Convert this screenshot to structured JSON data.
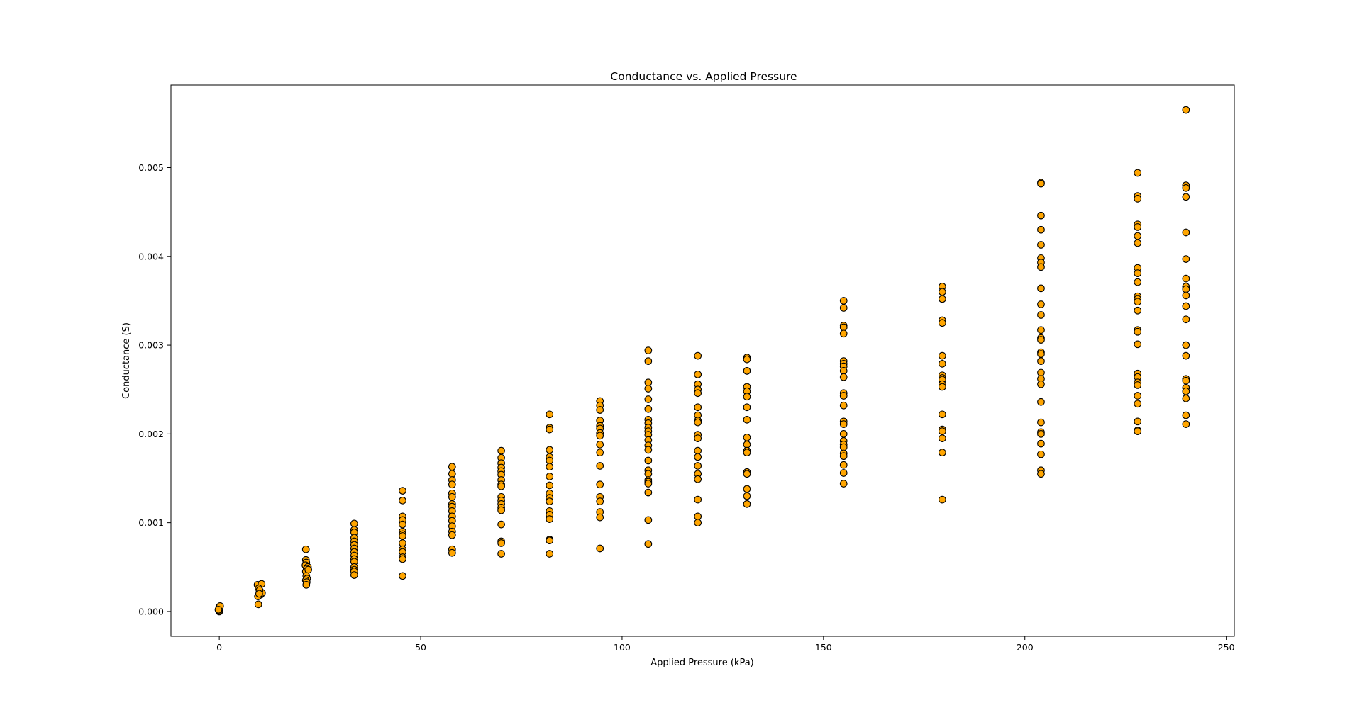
{
  "chart_data": {
    "type": "scatter",
    "title": "Conductance vs. Applied Pressure",
    "xlabel": "Applied Pressure (kPa)",
    "ylabel": "Conductance (S)",
    "xlim": [
      -12,
      252
    ],
    "ylim": [
      -0.00028,
      0.00593
    ],
    "xticks": [
      0,
      50,
      100,
      150,
      200,
      250
    ],
    "xtick_labels": [
      "0",
      "50",
      "100",
      "150",
      "200",
      "250"
    ],
    "yticks": [
      0.0,
      0.001,
      0.002,
      0.003,
      0.004,
      0.005
    ],
    "ytick_labels": [
      "0.000",
      "0.001",
      "0.002",
      "0.003",
      "0.004",
      "0.005"
    ],
    "grid": false,
    "marker_color": "#FFA500",
    "marker_edge_color": "#000000",
    "points": [
      [
        0,
        5e-05
      ],
      [
        0,
        0.0
      ],
      [
        0,
        2e-05
      ],
      [
        0,
        4e-05
      ],
      [
        0,
        1e-05
      ],
      [
        0,
        3e-05
      ],
      [
        0.2,
        6e-05
      ],
      [
        -0.2,
        2e-05
      ],
      [
        9.5,
        0.0003
      ],
      [
        10.5,
        0.00031
      ],
      [
        10,
        0.00022
      ],
      [
        9.8,
        0.00026
      ],
      [
        10.3,
        0.00019
      ],
      [
        9.6,
        0.00017
      ],
      [
        10.6,
        0.00021
      ],
      [
        9.7,
        8e-05
      ],
      [
        10,
        0.00024
      ],
      [
        9.9,
        0.0002
      ],
      [
        21.5,
        0.0007
      ],
      [
        21.5,
        0.00058
      ],
      [
        21.6,
        0.00055
      ],
      [
        21.4,
        0.00052
      ],
      [
        22,
        0.0005
      ],
      [
        21.7,
        0.00048
      ],
      [
        21.5,
        0.00045
      ],
      [
        22.1,
        0.00047
      ],
      [
        21.6,
        0.0004
      ],
      [
        21.8,
        0.00037
      ],
      [
        21.5,
        0.00035
      ],
      [
        21.7,
        0.00033
      ],
      [
        21.6,
        0.0003
      ],
      [
        33.5,
        0.00099
      ],
      [
        33.5,
        0.00092
      ],
      [
        33.5,
        0.00089
      ],
      [
        33.5,
        0.00083
      ],
      [
        33.5,
        0.00079
      ],
      [
        33.5,
        0.00075
      ],
      [
        33.5,
        0.00071
      ],
      [
        33.5,
        0.00067
      ],
      [
        33.5,
        0.00063
      ],
      [
        33.5,
        0.00059
      ],
      [
        33.5,
        0.00056
      ],
      [
        33.5,
        0.0005
      ],
      [
        33.5,
        0.00047
      ],
      [
        33.5,
        0.00045
      ],
      [
        33.5,
        0.00041
      ],
      [
        45.5,
        0.00136
      ],
      [
        45.5,
        0.00125
      ],
      [
        45.5,
        0.00107
      ],
      [
        45.5,
        0.00103
      ],
      [
        45.5,
        0.00098
      ],
      [
        45.5,
        0.0009
      ],
      [
        45.5,
        0.00087
      ],
      [
        45.5,
        0.00085
      ],
      [
        45.5,
        0.00077
      ],
      [
        45.5,
        0.0007
      ],
      [
        45.5,
        0.00067
      ],
      [
        45.5,
        0.00061
      ],
      [
        45.5,
        0.00059
      ],
      [
        45.5,
        0.0004
      ],
      [
        57.8,
        0.00163
      ],
      [
        57.8,
        0.00155
      ],
      [
        57.8,
        0.00148
      ],
      [
        57.8,
        0.00143
      ],
      [
        57.8,
        0.00133
      ],
      [
        57.8,
        0.00129
      ],
      [
        57.8,
        0.00121
      ],
      [
        57.8,
        0.00118
      ],
      [
        57.8,
        0.00113
      ],
      [
        57.8,
        0.00107
      ],
      [
        57.8,
        0.00102
      ],
      [
        57.8,
        0.00096
      ],
      [
        57.8,
        0.0009
      ],
      [
        57.8,
        0.00086
      ],
      [
        57.8,
        0.0007
      ],
      [
        57.8,
        0.00066
      ],
      [
        70,
        0.00181
      ],
      [
        70,
        0.00173
      ],
      [
        70,
        0.00167
      ],
      [
        70,
        0.00162
      ],
      [
        70,
        0.00158
      ],
      [
        70,
        0.00154
      ],
      [
        70,
        0.00148
      ],
      [
        70,
        0.00143
      ],
      [
        70,
        0.00141
      ],
      [
        70,
        0.00129
      ],
      [
        70,
        0.00125
      ],
      [
        70,
        0.00121
      ],
      [
        70,
        0.00117
      ],
      [
        70,
        0.00114
      ],
      [
        70,
        0.00098
      ],
      [
        70,
        0.00079
      ],
      [
        70,
        0.00077
      ],
      [
        70,
        0.00065
      ],
      [
        82,
        0.00222
      ],
      [
        82,
        0.00207
      ],
      [
        82,
        0.00205
      ],
      [
        82,
        0.00182
      ],
      [
        82,
        0.00174
      ],
      [
        82,
        0.0017
      ],
      [
        82,
        0.00163
      ],
      [
        82,
        0.00152
      ],
      [
        82,
        0.00142
      ],
      [
        82,
        0.00133
      ],
      [
        82,
        0.00128
      ],
      [
        82,
        0.00124
      ],
      [
        82,
        0.00113
      ],
      [
        82,
        0.00109
      ],
      [
        82,
        0.00104
      ],
      [
        82,
        0.00081
      ],
      [
        82,
        0.0008
      ],
      [
        82,
        0.00065
      ],
      [
        94.5,
        0.00237
      ],
      [
        94.5,
        0.00232
      ],
      [
        94.5,
        0.00227
      ],
      [
        94.5,
        0.00215
      ],
      [
        94.5,
        0.00209
      ],
      [
        94.5,
        0.00206
      ],
      [
        94.5,
        0.00201
      ],
      [
        94.5,
        0.00198
      ],
      [
        94.5,
        0.00188
      ],
      [
        94.5,
        0.00179
      ],
      [
        94.5,
        0.00164
      ],
      [
        94.5,
        0.00143
      ],
      [
        94.5,
        0.00129
      ],
      [
        94.5,
        0.00124
      ],
      [
        94.5,
        0.00112
      ],
      [
        94.5,
        0.00106
      ],
      [
        94.5,
        0.00071
      ],
      [
        106.5,
        0.00294
      ],
      [
        106.5,
        0.00282
      ],
      [
        106.5,
        0.00258
      ],
      [
        106.5,
        0.00251
      ],
      [
        106.5,
        0.00239
      ],
      [
        106.5,
        0.00228
      ],
      [
        106.5,
        0.00216
      ],
      [
        106.5,
        0.00212
      ],
      [
        106.5,
        0.00207
      ],
      [
        106.5,
        0.00203
      ],
      [
        106.5,
        0.00199
      ],
      [
        106.5,
        0.00193
      ],
      [
        106.5,
        0.00187
      ],
      [
        106.5,
        0.00182
      ],
      [
        106.5,
        0.0017
      ],
      [
        106.5,
        0.00159
      ],
      [
        106.5,
        0.00155
      ],
      [
        106.5,
        0.00148
      ],
      [
        106.5,
        0.00146
      ],
      [
        106.5,
        0.00144
      ],
      [
        106.5,
        0.00134
      ],
      [
        106.5,
        0.00103
      ],
      [
        106.5,
        0.00076
      ],
      [
        118.8,
        0.00288
      ],
      [
        118.8,
        0.00267
      ],
      [
        118.8,
        0.00256
      ],
      [
        118.8,
        0.0025
      ],
      [
        118.8,
        0.00246
      ],
      [
        118.8,
        0.0023
      ],
      [
        118.8,
        0.00221
      ],
      [
        118.8,
        0.00215
      ],
      [
        118.8,
        0.00213
      ],
      [
        118.8,
        0.00199
      ],
      [
        118.8,
        0.00195
      ],
      [
        118.8,
        0.00181
      ],
      [
        118.8,
        0.00174
      ],
      [
        118.8,
        0.00164
      ],
      [
        118.8,
        0.00155
      ],
      [
        118.8,
        0.00149
      ],
      [
        118.8,
        0.00126
      ],
      [
        118.8,
        0.00107
      ],
      [
        118.8,
        0.001
      ],
      [
        131,
        0.00286
      ],
      [
        131,
        0.00284
      ],
      [
        131,
        0.00271
      ],
      [
        131,
        0.00253
      ],
      [
        131,
        0.00248
      ],
      [
        131,
        0.00242
      ],
      [
        131,
        0.0023
      ],
      [
        131,
        0.00216
      ],
      [
        131,
        0.00196
      ],
      [
        131,
        0.00188
      ],
      [
        131,
        0.00181
      ],
      [
        131,
        0.00179
      ],
      [
        131,
        0.00157
      ],
      [
        131,
        0.00155
      ],
      [
        131,
        0.00138
      ],
      [
        131,
        0.0013
      ],
      [
        131,
        0.00121
      ],
      [
        155,
        0.0035
      ],
      [
        155,
        0.00342
      ],
      [
        155,
        0.00322
      ],
      [
        155,
        0.0032
      ],
      [
        155,
        0.00313
      ],
      [
        155,
        0.00282
      ],
      [
        155,
        0.00279
      ],
      [
        155,
        0.00276
      ],
      [
        155,
        0.00271
      ],
      [
        155,
        0.00264
      ],
      [
        155,
        0.00246
      ],
      [
        155,
        0.00243
      ],
      [
        155,
        0.00232
      ],
      [
        155,
        0.00214
      ],
      [
        155,
        0.00211
      ],
      [
        155,
        0.002
      ],
      [
        155,
        0.00192
      ],
      [
        155,
        0.00188
      ],
      [
        155,
        0.00185
      ],
      [
        155,
        0.00178
      ],
      [
        155,
        0.00175
      ],
      [
        155,
        0.00165
      ],
      [
        155,
        0.00156
      ],
      [
        155,
        0.00144
      ],
      [
        179.5,
        0.00366
      ],
      [
        179.5,
        0.0036
      ],
      [
        179.5,
        0.00352
      ],
      [
        179.5,
        0.00328
      ],
      [
        179.5,
        0.00325
      ],
      [
        179.5,
        0.00288
      ],
      [
        179.5,
        0.00279
      ],
      [
        179.5,
        0.00266
      ],
      [
        179.5,
        0.00263
      ],
      [
        179.5,
        0.00261
      ],
      [
        179.5,
        0.00256
      ],
      [
        179.5,
        0.00253
      ],
      [
        179.5,
        0.00222
      ],
      [
        179.5,
        0.00205
      ],
      [
        179.5,
        0.00203
      ],
      [
        179.5,
        0.00195
      ],
      [
        179.5,
        0.00179
      ],
      [
        179.5,
        0.00126
      ],
      [
        204,
        0.00483
      ],
      [
        204,
        0.00482
      ],
      [
        204,
        0.00446
      ],
      [
        204,
        0.0043
      ],
      [
        204,
        0.00413
      ],
      [
        204,
        0.00398
      ],
      [
        204,
        0.00393
      ],
      [
        204,
        0.00388
      ],
      [
        204,
        0.00364
      ],
      [
        204,
        0.00346
      ],
      [
        204,
        0.00334
      ],
      [
        204,
        0.00317
      ],
      [
        204,
        0.00308
      ],
      [
        204,
        0.00306
      ],
      [
        204,
        0.00292
      ],
      [
        204,
        0.0029
      ],
      [
        204,
        0.00282
      ],
      [
        204,
        0.00269
      ],
      [
        204,
        0.00262
      ],
      [
        204,
        0.00256
      ],
      [
        204,
        0.00236
      ],
      [
        204,
        0.00213
      ],
      [
        204,
        0.00202
      ],
      [
        204,
        0.002
      ],
      [
        204,
        0.00189
      ],
      [
        204,
        0.00177
      ],
      [
        204,
        0.00159
      ],
      [
        204,
        0.00155
      ],
      [
        228,
        0.00494
      ],
      [
        228,
        0.00468
      ],
      [
        228,
        0.00465
      ],
      [
        228,
        0.00436
      ],
      [
        228,
        0.00433
      ],
      [
        228,
        0.00423
      ],
      [
        228,
        0.00415
      ],
      [
        228,
        0.00387
      ],
      [
        228,
        0.00381
      ],
      [
        228,
        0.00371
      ],
      [
        228,
        0.00355
      ],
      [
        228,
        0.00352
      ],
      [
        228,
        0.00349
      ],
      [
        228,
        0.00339
      ],
      [
        228,
        0.00317
      ],
      [
        228,
        0.00315
      ],
      [
        228,
        0.00301
      ],
      [
        228,
        0.00268
      ],
      [
        228,
        0.00264
      ],
      [
        228,
        0.00258
      ],
      [
        228,
        0.00255
      ],
      [
        228,
        0.00243
      ],
      [
        228,
        0.00234
      ],
      [
        228,
        0.00214
      ],
      [
        228,
        0.00204
      ],
      [
        228,
        0.00203
      ],
      [
        240,
        0.00565
      ],
      [
        240,
        0.0048
      ],
      [
        240,
        0.00477
      ],
      [
        240,
        0.00467
      ],
      [
        240,
        0.00427
      ],
      [
        240,
        0.00397
      ],
      [
        240,
        0.00375
      ],
      [
        240,
        0.00366
      ],
      [
        240,
        0.00363
      ],
      [
        240,
        0.00356
      ],
      [
        240,
        0.00344
      ],
      [
        240,
        0.00329
      ],
      [
        240,
        0.003
      ],
      [
        240,
        0.00288
      ],
      [
        240,
        0.00262
      ],
      [
        240,
        0.0026
      ],
      [
        240,
        0.00252
      ],
      [
        240,
        0.00248
      ],
      [
        240,
        0.0024
      ],
      [
        240,
        0.00221
      ],
      [
        240,
        0.00211
      ]
    ]
  }
}
